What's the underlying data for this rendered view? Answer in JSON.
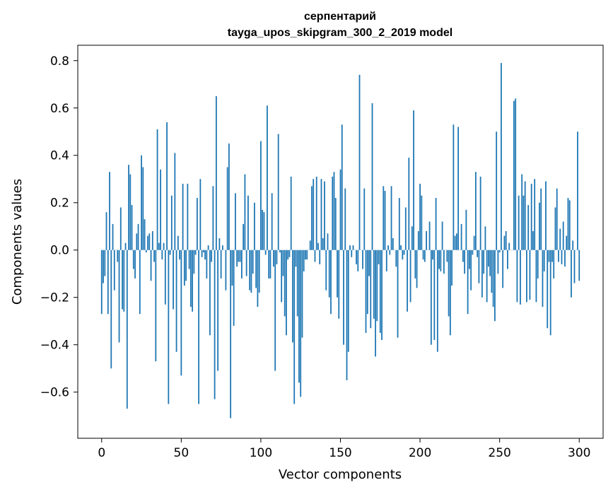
{
  "chart_data": {
    "type": "bar",
    "title": "серпентарий",
    "subtitle": "tayga_upos_skipgram_300_2_2019 model",
    "xlabel": "Vector components",
    "ylabel": "Components values",
    "xlim": [
      -15,
      315
    ],
    "ylim": [
      -0.795,
      0.865
    ],
    "x_ticks": [
      0,
      50,
      100,
      150,
      200,
      250,
      300
    ],
    "y_ticks": [
      -0.6,
      -0.4,
      -0.2,
      0.0,
      0.2,
      0.4,
      0.6,
      0.8
    ],
    "y_tick_labels": [
      "−0.6",
      "−0.4",
      "−0.2",
      "0.0",
      "0.2",
      "0.4",
      "0.6",
      "0.8"
    ],
    "bar_color": "#1f77b4",
    "grid": false,
    "values": [
      -0.27,
      -0.14,
      -0.11,
      0.16,
      -0.27,
      0.33,
      -0.5,
      0.11,
      -0.17,
      0.0,
      -0.05,
      -0.39,
      0.18,
      -0.25,
      -0.26,
      0.03,
      -0.67,
      0.36,
      0.32,
      0.19,
      -0.08,
      -0.12,
      0.07,
      0.11,
      -0.27,
      0.4,
      0.35,
      0.13,
      -0.01,
      0.06,
      0.07,
      -0.13,
      0.08,
      -0.05,
      -0.47,
      0.51,
      0.03,
      0.34,
      -0.04,
      0.03,
      -0.23,
      0.54,
      -0.65,
      -0.02,
      0.23,
      -0.25,
      0.41,
      -0.43,
      0.06,
      -0.04,
      -0.53,
      0.28,
      -0.15,
      -0.13,
      0.28,
      -0.08,
      -0.24,
      -0.26,
      -0.1,
      -0.02,
      0.22,
      -0.65,
      0.3,
      -0.03,
      -0.01,
      -0.04,
      -0.12,
      0.02,
      -0.36,
      -0.05,
      0.27,
      -0.63,
      0.65,
      -0.51,
      0.05,
      -0.12,
      0.02,
      0.0,
      -0.17,
      0.35,
      0.45,
      -0.71,
      -0.15,
      -0.32,
      0.24,
      -0.07,
      -0.05,
      -0.05,
      -0.12,
      0.11,
      0.32,
      -0.11,
      0.23,
      -0.17,
      -0.18,
      -0.1,
      0.2,
      -0.16,
      -0.24,
      -0.18,
      0.46,
      0.17,
      0.16,
      -0.02,
      0.61,
      -0.12,
      -0.12,
      0.24,
      -0.07,
      -0.51,
      -0.06,
      0.49,
      -0.01,
      -0.22,
      -0.11,
      -0.28,
      -0.36,
      -0.04,
      -0.03,
      0.31,
      -0.39,
      -0.65,
      -0.07,
      -0.28,
      -0.56,
      -0.62,
      -0.37,
      -0.09,
      -0.04,
      -0.04,
      0.0,
      0.04,
      0.27,
      0.3,
      -0.05,
      0.31,
      0.03,
      -0.06,
      0.3,
      0.05,
      0.29,
      -0.17,
      0.07,
      -0.2,
      -0.27,
      0.31,
      0.33,
      0.22,
      -0.2,
      -0.29,
      0.34,
      0.53,
      -0.4,
      0.26,
      -0.55,
      -0.43,
      0.02,
      -0.03,
      0.02,
      0.0,
      -0.06,
      -0.09,
      0.74,
      0.0,
      -0.08,
      0.26,
      -0.35,
      -0.27,
      -0.11,
      -0.33,
      0.62,
      -0.29,
      -0.45,
      -0.3,
      -0.06,
      -0.35,
      -0.38,
      0.27,
      0.25,
      -0.09,
      0.02,
      -0.02,
      0.27,
      0.05,
      0.0,
      -0.07,
      -0.37,
      0.22,
      0.02,
      -0.04,
      -0.02,
      0.18,
      -0.26,
      0.39,
      -0.22,
      0.1,
      0.59,
      -0.12,
      -0.16,
      0.08,
      0.28,
      0.23,
      -0.04,
      -0.05,
      0.08,
      0.0,
      0.12,
      -0.4,
      -0.04,
      -0.38,
      0.22,
      -0.43,
      -0.08,
      -0.09,
      0.12,
      -0.1,
      0.0,
      -0.05,
      -0.28,
      -0.36,
      -0.15,
      0.53,
      0.06,
      0.07,
      0.52,
      0.0,
      0.11,
      -0.05,
      -0.1,
      0.17,
      -0.27,
      -0.08,
      -0.17,
      -0.02,
      0.06,
      0.33,
      -0.03,
      -0.14,
      0.31,
      -0.2,
      -0.1,
      0.1,
      -0.22,
      -0.07,
      -0.11,
      -0.18,
      -0.24,
      -0.3,
      0.5,
      -0.1,
      -0.01,
      0.79,
      -0.16,
      0.06,
      0.08,
      -0.08,
      0.03,
      0.0,
      0.0,
      0.63,
      0.64,
      -0.22,
      0.23,
      -0.23,
      0.32,
      0.23,
      0.29,
      -0.22,
      0.19,
      -0.21,
      0.28,
      0.08,
      0.3,
      -0.22,
      -0.12,
      0.2,
      0.26,
      -0.24,
      -0.09,
      0.29,
      -0.33,
      -0.05,
      -0.36,
      -0.05,
      -0.12,
      0.18,
      0.26,
      -0.05,
      0.09,
      -0.06,
      0.12,
      -0.07,
      0.06,
      0.22,
      0.21,
      -0.2,
      0.04,
      -0.14,
      0.0,
      0.5,
      -0.13
    ]
  }
}
